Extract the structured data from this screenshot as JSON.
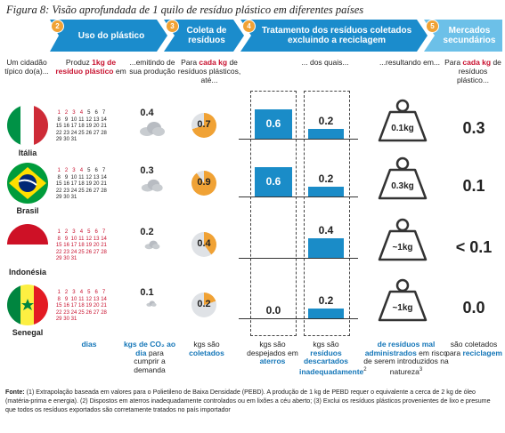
{
  "figure_title": "Figura 8: Visão aprofundada de 1 quilo de resíduo plástico em diferentes países",
  "stages": [
    {
      "num": "2",
      "label": "Uso do plástico"
    },
    {
      "num": "3",
      "label": "Coleta de resíduos"
    },
    {
      "num": "4",
      "label": "Tratamento dos resíduos coletados excluindo a reciclagem"
    },
    {
      "num": "5",
      "label": "Mercados secundários"
    }
  ],
  "headers": {
    "citizen": "Um cidadão típico do(a)...",
    "produces_pre": "Produz ",
    "produces_hl": "1kg de resíduo plástico",
    "produces_post": " em",
    "emitting": "...emitindo de sua produção",
    "collect_pre": "Para ",
    "collect_hl": "cada kg",
    "collect_post": " de resíduos plásticos, até...",
    "of_which": "... dos quais...",
    "resulting": "...resultando em...",
    "market_pre": "Para ",
    "market_hl": "cada kg",
    "market_post": " de resíduos plástico..."
  },
  "countries": [
    {
      "name": "Itália",
      "red_days": 4,
      "emission": "0.4",
      "collected": "0.7",
      "collected_frac": 0.7,
      "landfill": "0.6",
      "landfill_v": 0.6,
      "mismanaged": "0.2",
      "mismanaged_v": 0.2,
      "risk": "0.1kg",
      "secondary": "0.3"
    },
    {
      "name": "Brasil",
      "red_days": 4,
      "emission": "0.3",
      "collected": "0.9",
      "collected_frac": 0.9,
      "landfill": "0.6",
      "landfill_v": 0.6,
      "mismanaged": "0.2",
      "mismanaged_v": 0.2,
      "risk": "0.3kg",
      "secondary": "0.1"
    },
    {
      "name": "Indonésia",
      "red_days": 31,
      "emission": "0.2",
      "collected": "0.4",
      "collected_frac": 0.4,
      "landfill": "",
      "landfill_v": 0,
      "mismanaged": "0.4",
      "mismanaged_v": 0.4,
      "risk": "~1kg",
      "secondary": "< 0.1"
    },
    {
      "name": "Senegal",
      "red_days": 31,
      "emission": "0.1",
      "collected": "0.2",
      "collected_frac": 0.2,
      "landfill": "0.0",
      "landfill_v": 0.0,
      "mismanaged": "0.2",
      "mismanaged_v": 0.2,
      "risk": "~1kg",
      "secondary": "0.0"
    }
  ],
  "footers": {
    "days": "dias",
    "co2_hl": "kgs de CO₂ ao dia",
    "co2_post": " para cumprir a demanda",
    "coll_pre": "kgs são ",
    "coll_hl": "coletados",
    "land_pre": "kgs são despejados em ",
    "land_hl": "aterros",
    "mis_pre": "kgs são ",
    "mis_hl": "resíduos descartados inadequadamente",
    "mis_sup": "2",
    "risk_hl": "de resíduos mal administrados",
    "risk_post": " em risco de serem introduzidos na natureza",
    "risk_sup": "3",
    "mk_pre": "são coletados para ",
    "mk_hl": "reciclagem"
  },
  "source_label": "Fonte: ",
  "source_text": "(1) Extrapolação baseada em valores para o Polietileno de Baixa Densidade (PEBD). A produção de 1 kg de PEBD requer o equivalente a cerca de 2 kg de óleo (matéria-prima e energia). (2) Dispostos em aterros inadequadamente controlados ou em lixões a céu aberto; (3) Exclui os resíduos plásticos provenientes de lixo e presume que todos os resíduos exportados são corretamente tratados no país importador",
  "colors": {
    "chevron": "#1b8ccc",
    "chevron_light": "#3aa6dc",
    "badge": "#f0a235",
    "bar": "#1a8cc8",
    "red": "#c8102e",
    "pie": "#f0a235"
  }
}
